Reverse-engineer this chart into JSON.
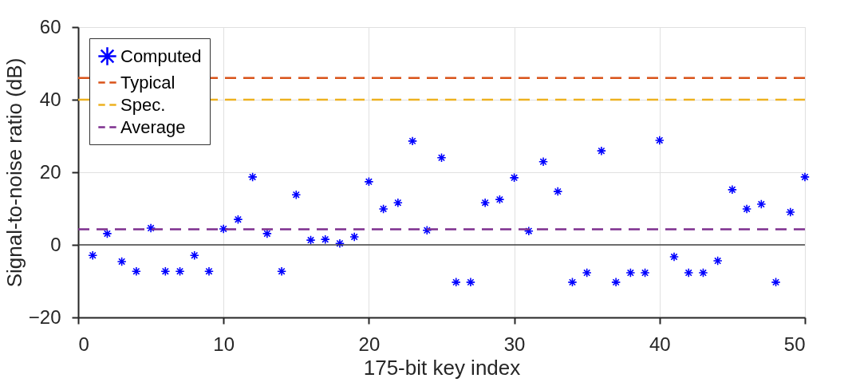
{
  "chart_data": {
    "type": "scatter",
    "xlabel": "175-bit key index",
    "ylabel": "Signal-to-noise ratio (dB)",
    "x": [
      1,
      2,
      3,
      4,
      5,
      6,
      7,
      8,
      9,
      10,
      11,
      12,
      13,
      14,
      15,
      16,
      17,
      18,
      19,
      20,
      21,
      22,
      23,
      24,
      25,
      26,
      27,
      28,
      29,
      30,
      31,
      32,
      33,
      34,
      35,
      36,
      37,
      38,
      39,
      40,
      41,
      42,
      43,
      44,
      45,
      46,
      47,
      48,
      49,
      50
    ],
    "series": [
      {
        "name": "Computed",
        "color": "#0000ff",
        "values": [
          -2.9,
          3.1,
          -4.6,
          -7.3,
          4.6,
          -7.3,
          -7.3,
          -2.9,
          -7.3,
          4.4,
          7.0,
          18.7,
          3.1,
          -7.3,
          13.8,
          1.3,
          1.5,
          0.4,
          2.2,
          17.4,
          9.9,
          11.6,
          28.6,
          4.0,
          24.0,
          -10.3,
          -10.3,
          11.6,
          12.5,
          18.5,
          3.8,
          22.9,
          14.7,
          -10.3,
          -7.7,
          25.9,
          -10.3,
          -7.7,
          -7.7,
          28.8,
          -3.3,
          -7.7,
          -7.7,
          -4.4,
          15.2,
          9.9,
          11.2,
          -10.3,
          9.0,
          18.7
        ]
      }
    ],
    "ref_lines": [
      {
        "axis": "y",
        "value": 0,
        "color": "#404040",
        "line_style": "solid"
      },
      {
        "axis": "y",
        "value": 46,
        "label": "Typical",
        "color": "#d95319",
        "line_style": "dashed"
      },
      {
        "axis": "y",
        "value": 40,
        "label": "Spec.",
        "color": "#edb120",
        "line_style": "dashed"
      },
      {
        "axis": "y",
        "value": 4.3,
        "label": "Average",
        "color": "#7e2f8e",
        "line_style": "dashed"
      }
    ],
    "xlim": [
      0,
      50
    ],
    "xticks": [
      0,
      10,
      20,
      30,
      40,
      50
    ],
    "ylim": [
      -20,
      60
    ],
    "yticks": [
      -20,
      0,
      20,
      40,
      60
    ],
    "grid": true,
    "legend": "top left",
    "marker": "cross"
  }
}
